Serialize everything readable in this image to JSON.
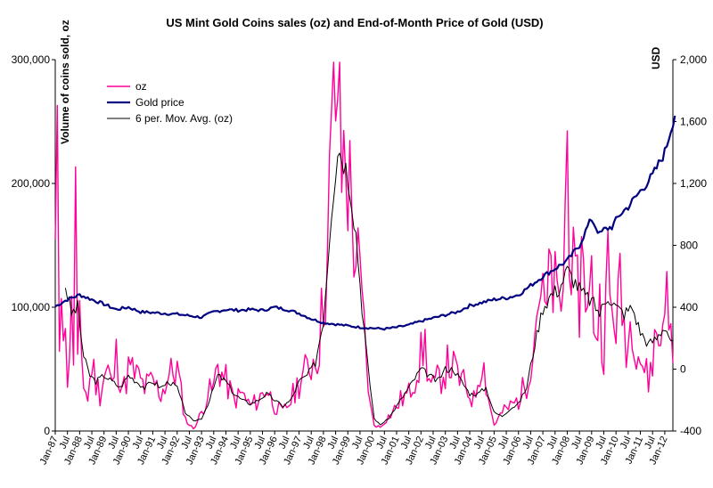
{
  "chart_data": {
    "type": "line",
    "title": "US Mint Gold Coins sales (oz) and End-of-Month Price of Gold (USD)",
    "ylabel_left": "Volume of coins sold, oz",
    "ylabel_right": "USD",
    "ylim_left": [
      0,
      300000
    ],
    "ylim_right": [
      -400,
      2000
    ],
    "yticks_left": [
      0,
      100000,
      200000,
      300000
    ],
    "yticks_left_labels": [
      "0",
      "100,000",
      "200,000",
      "300,000"
    ],
    "yticks_right": [
      -400,
      0,
      400,
      800,
      1200,
      1600,
      2000
    ],
    "yticks_right_labels": [
      "-400",
      "0",
      "400",
      "800",
      "1,200",
      "1,600",
      "2,000"
    ],
    "x_start": "Jan-87",
    "x_months": 305,
    "x_tick_labels": [
      "Jan-87",
      "Jul",
      "Jan-88",
      "Jul",
      "Jan-89",
      "Jul",
      "Jan-90",
      "Jul",
      "Jan-91",
      "Jul",
      "Jan-92",
      "Jul",
      "Jan-93",
      "Jul",
      "Jan-94",
      "Jul",
      "Jan-95",
      "Jul",
      "Jan-96",
      "Jul",
      "Jan-97",
      "Jul",
      "Jan-98",
      "Jul",
      "Jan-99",
      "Jul",
      "Jan-00",
      "Jul",
      "Jan-01",
      "Jul",
      "Jan-02",
      "Jul",
      "Jan-03",
      "Jul",
      "Jan-04",
      "Jul",
      "Jan-05",
      "Jul",
      "Jan-06",
      "Jul",
      "Jan-07",
      "Jul",
      "Jan-08",
      "Jul",
      "Jan-09",
      "Jul",
      "Jan-10",
      "Jul",
      "Jan-11",
      "Jul",
      "Jan-12"
    ],
    "legend": [
      "oz",
      "Gold price",
      "6 per. Mov. Avg. (oz)"
    ],
    "legend_position": "top-left",
    "colors": {
      "oz": "#ff0099",
      "gold": "#000080",
      "ma": "#000000"
    },
    "series": [
      {
        "name": "oz",
        "axis": "left",
        "anchors": [
          [
            0,
            140000
          ],
          [
            1,
            205000
          ],
          [
            2,
            75000
          ],
          [
            3,
            148000
          ],
          [
            4,
            90000
          ],
          [
            5,
            70000
          ],
          [
            6,
            45000
          ],
          [
            8,
            90000
          ],
          [
            9,
            60000
          ],
          [
            10,
            197000
          ],
          [
            11,
            50000
          ],
          [
            12,
            80000
          ],
          [
            14,
            40000
          ],
          [
            16,
            25000
          ],
          [
            18,
            55000
          ],
          [
            20,
            40000
          ],
          [
            22,
            30000
          ],
          [
            24,
            45000
          ],
          [
            26,
            50000
          ],
          [
            28,
            35000
          ],
          [
            30,
            60000
          ],
          [
            32,
            45000
          ],
          [
            34,
            35000
          ],
          [
            36,
            50000
          ],
          [
            40,
            45000
          ],
          [
            44,
            35000
          ],
          [
            48,
            40000
          ],
          [
            52,
            30000
          ],
          [
            56,
            45000
          ],
          [
            60,
            50000
          ],
          [
            62,
            30000
          ],
          [
            64,
            10000
          ],
          [
            66,
            5000
          ],
          [
            68,
            2000
          ],
          [
            70,
            8000
          ],
          [
            72,
            15000
          ],
          [
            75,
            30000
          ],
          [
            78,
            35000
          ],
          [
            80,
            55000
          ],
          [
            82,
            45000
          ],
          [
            84,
            40000
          ],
          [
            88,
            25000
          ],
          [
            92,
            30000
          ],
          [
            96,
            20000
          ],
          [
            100,
            25000
          ],
          [
            104,
            35000
          ],
          [
            108,
            20000
          ],
          [
            112,
            15000
          ],
          [
            116,
            25000
          ],
          [
            120,
            40000
          ],
          [
            124,
            50000
          ],
          [
            128,
            60000
          ],
          [
            130,
            70000
          ],
          [
            132,
            110000
          ],
          [
            134,
            140000
          ],
          [
            136,
            230000
          ],
          [
            138,
            270000
          ],
          [
            139,
            288000
          ],
          [
            141,
            210000
          ],
          [
            143,
            230000
          ],
          [
            145,
            190000
          ],
          [
            147,
            160000
          ],
          [
            149,
            130000
          ],
          [
            151,
            100000
          ],
          [
            153,
            60000
          ],
          [
            155,
            20000
          ],
          [
            157,
            5000
          ],
          [
            160,
            3000
          ],
          [
            163,
            10000
          ],
          [
            166,
            15000
          ],
          [
            170,
            25000
          ],
          [
            174,
            30000
          ],
          [
            178,
            50000
          ],
          [
            182,
            70000
          ],
          [
            184,
            40000
          ],
          [
            186,
            35000
          ],
          [
            190,
            45000
          ],
          [
            194,
            55000
          ],
          [
            198,
            45000
          ],
          [
            202,
            35000
          ],
          [
            206,
            25000
          ],
          [
            210,
            60000
          ],
          [
            212,
            40000
          ],
          [
            214,
            20000
          ],
          [
            216,
            5000
          ],
          [
            220,
            15000
          ],
          [
            224,
            20000
          ],
          [
            228,
            25000
          ],
          [
            232,
            40000
          ],
          [
            234,
            60000
          ],
          [
            236,
            80000
          ],
          [
            238,
            120000
          ],
          [
            240,
            100000
          ],
          [
            242,
            95000
          ],
          [
            244,
            130000
          ],
          [
            246,
            110000
          ],
          [
            248,
            95000
          ],
          [
            250,
            120000
          ],
          [
            252,
            232000
          ],
          [
            254,
            140000
          ],
          [
            256,
            105000
          ],
          [
            258,
            110000
          ],
          [
            260,
            160000
          ],
          [
            262,
            90000
          ],
          [
            264,
            120000
          ],
          [
            266,
            80000
          ],
          [
            268,
            100000
          ],
          [
            270,
            70000
          ],
          [
            272,
            130000
          ],
          [
            274,
            90000
          ],
          [
            276,
            95000
          ],
          [
            278,
            110000
          ],
          [
            280,
            85000
          ],
          [
            282,
            70000
          ],
          [
            284,
            100000
          ],
          [
            286,
            75000
          ],
          [
            288,
            60000
          ],
          [
            290,
            50000
          ],
          [
            292,
            40000
          ],
          [
            294,
            60000
          ],
          [
            296,
            80000
          ],
          [
            298,
            70000
          ],
          [
            300,
            130000
          ],
          [
            302,
            80000
          ],
          [
            304,
            70000
          ]
        ]
      },
      {
        "name": "Gold price",
        "axis": "right",
        "anchors": [
          [
            0,
            405
          ],
          [
            6,
            450
          ],
          [
            10,
            470
          ],
          [
            12,
            480
          ],
          [
            18,
            450
          ],
          [
            24,
            420
          ],
          [
            30,
            385
          ],
          [
            36,
            400
          ],
          [
            42,
            370
          ],
          [
            48,
            365
          ],
          [
            54,
            360
          ],
          [
            60,
            355
          ],
          [
            66,
            345
          ],
          [
            72,
            335
          ],
          [
            78,
            370
          ],
          [
            84,
            385
          ],
          [
            90,
            380
          ],
          [
            96,
            385
          ],
          [
            102,
            380
          ],
          [
            108,
            400
          ],
          [
            114,
            385
          ],
          [
            120,
            360
          ],
          [
            126,
            325
          ],
          [
            132,
            300
          ],
          [
            138,
            290
          ],
          [
            144,
            280
          ],
          [
            150,
            270
          ],
          [
            156,
            265
          ],
          [
            162,
            260
          ],
          [
            168,
            270
          ],
          [
            174,
            285
          ],
          [
            180,
            310
          ],
          [
            186,
            330
          ],
          [
            192,
            350
          ],
          [
            198,
            370
          ],
          [
            204,
            410
          ],
          [
            210,
            430
          ],
          [
            216,
            450
          ],
          [
            222,
            460
          ],
          [
            228,
            480
          ],
          [
            234,
            540
          ],
          [
            240,
            600
          ],
          [
            246,
            650
          ],
          [
            252,
            700
          ],
          [
            258,
            800
          ],
          [
            262,
            920
          ],
          [
            264,
            970
          ],
          [
            268,
            870
          ],
          [
            270,
            900
          ],
          [
            274,
            920
          ],
          [
            278,
            1000
          ],
          [
            282,
            1050
          ],
          [
            288,
            1150
          ],
          [
            294,
            1250
          ],
          [
            300,
            1400
          ],
          [
            302,
            1500
          ],
          [
            304,
            1600
          ],
          [
            305,
            1650
          ]
        ]
      },
      {
        "name": "6 per. Mov. Avg. (oz)",
        "axis": "left",
        "anchors": [
          [
            5,
            118000
          ],
          [
            8,
            95000
          ],
          [
            11,
            100000
          ],
          [
            14,
            60000
          ],
          [
            17,
            45000
          ],
          [
            20,
            40000
          ],
          [
            24,
            45000
          ],
          [
            28,
            40000
          ],
          [
            32,
            35000
          ],
          [
            36,
            45000
          ],
          [
            40,
            40000
          ],
          [
            44,
            35000
          ],
          [
            48,
            40000
          ],
          [
            52,
            35000
          ],
          [
            56,
            40000
          ],
          [
            60,
            35000
          ],
          [
            64,
            15000
          ],
          [
            68,
            8000
          ],
          [
            72,
            10000
          ],
          [
            76,
            25000
          ],
          [
            80,
            45000
          ],
          [
            84,
            40000
          ],
          [
            88,
            30000
          ],
          [
            92,
            25000
          ],
          [
            96,
            22000
          ],
          [
            100,
            25000
          ],
          [
            104,
            30000
          ],
          [
            108,
            25000
          ],
          [
            112,
            20000
          ],
          [
            116,
            25000
          ],
          [
            120,
            40000
          ],
          [
            124,
            45000
          ],
          [
            128,
            55000
          ],
          [
            132,
            90000
          ],
          [
            136,
            180000
          ],
          [
            139,
            230000
          ],
          [
            142,
            220000
          ],
          [
            145,
            200000
          ],
          [
            148,
            160000
          ],
          [
            151,
            100000
          ],
          [
            154,
            50000
          ],
          [
            157,
            10000
          ],
          [
            160,
            5000
          ],
          [
            164,
            10000
          ],
          [
            168,
            20000
          ],
          [
            172,
            30000
          ],
          [
            176,
            40000
          ],
          [
            180,
            50000
          ],
          [
            184,
            45000
          ],
          [
            188,
            40000
          ],
          [
            192,
            50000
          ],
          [
            196,
            50000
          ],
          [
            200,
            40000
          ],
          [
            204,
            30000
          ],
          [
            208,
            30000
          ],
          [
            212,
            35000
          ],
          [
            216,
            15000
          ],
          [
            220,
            12000
          ],
          [
            224,
            18000
          ],
          [
            228,
            22000
          ],
          [
            232,
            35000
          ],
          [
            236,
            70000
          ],
          [
            240,
            100000
          ],
          [
            244,
            110000
          ],
          [
            248,
            115000
          ],
          [
            252,
            130000
          ],
          [
            256,
            120000
          ],
          [
            260,
            110000
          ],
          [
            264,
            105000
          ],
          [
            268,
            95000
          ],
          [
            272,
            110000
          ],
          [
            276,
            100000
          ],
          [
            280,
            95000
          ],
          [
            284,
            100000
          ],
          [
            288,
            80000
          ],
          [
            292,
            70000
          ],
          [
            296,
            75000
          ],
          [
            300,
            85000
          ],
          [
            304,
            70000
          ]
        ]
      }
    ]
  }
}
